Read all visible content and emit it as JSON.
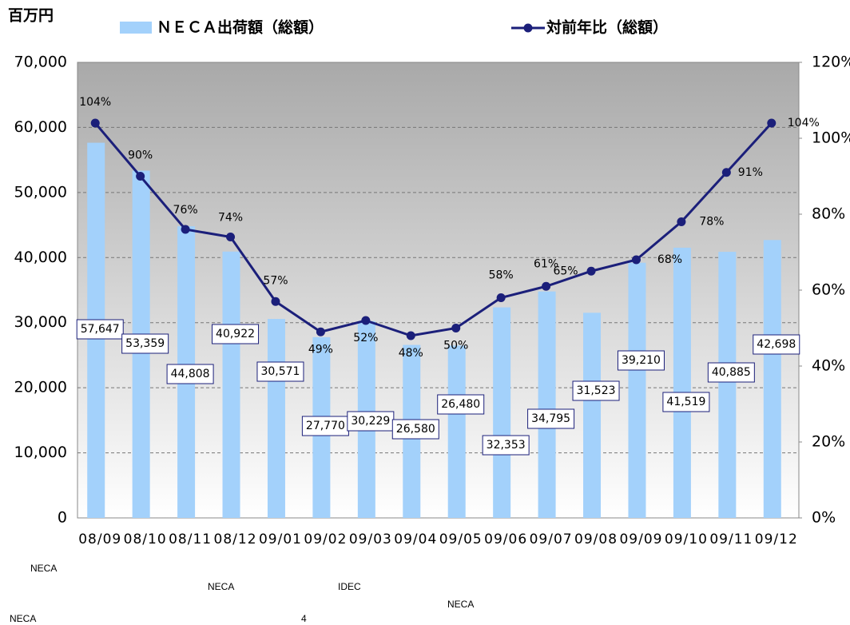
{
  "chart_data": {
    "type": "bar_line",
    "unit_label": "百万円",
    "categories": [
      "08/09",
      "08/10",
      "08/11",
      "08/12",
      "09/01",
      "09/02",
      "09/03",
      "09/04",
      "09/05",
      "09/06",
      "09/07",
      "09/08",
      "09/09",
      "09/10",
      "09/11",
      "09/12"
    ],
    "series": [
      {
        "name": "ＮＥＣＡ出荷額（総額）",
        "type": "bar",
        "color": "#a3d1fb",
        "values": [
          57647,
          53359,
          44808,
          40922,
          30571,
          27770,
          30229,
          26580,
          26480,
          32353,
          34795,
          31523,
          39210,
          41519,
          40885,
          42698
        ],
        "value_labels": [
          "57,647",
          "53,359",
          "44,808",
          "40,922",
          "30,571",
          "27,770",
          "30,229",
          "26,580",
          "26,480",
          "32,353",
          "34,795",
          "31,523",
          "39,210",
          "41,519",
          "40,885",
          "42,698"
        ]
      },
      {
        "name": "対前年比（総額）",
        "type": "line",
        "axis": "y2",
        "color": "#1b1f7a",
        "values": [
          104,
          90,
          76,
          74,
          57,
          49,
          52,
          48,
          50,
          58,
          61,
          65,
          68,
          78,
          91,
          104
        ],
        "value_labels": [
          "104%",
          "90%",
          "76%",
          "74%",
          "57%",
          "49%",
          "52%",
          "48%",
          "50%",
          "58%",
          "61%",
          "65%",
          "68%",
          "78%",
          "91%",
          "104%"
        ]
      }
    ],
    "ylim": [
      0,
      70000
    ],
    "yticks": [
      0,
      {
        "value": 10000,
        "label": "10,000"
      },
      {
        "value": 20000,
        "label": "20,000"
      },
      {
        "value": 30000,
        "label": "30,000"
      },
      {
        "value": 40000,
        "label": "40,000"
      },
      {
        "value": 50000,
        "label": "50,000"
      },
      {
        "value": 60000,
        "label": "60,000"
      },
      {
        "value": 70000,
        "label": "70,000"
      }
    ],
    "y2lim": [
      0,
      120
    ],
    "y2ticks": [
      {
        "value": 0,
        "label": "0%"
      },
      {
        "value": 20,
        "label": "20%"
      },
      {
        "value": 40,
        "label": "40%"
      },
      {
        "value": 60,
        "label": "60%"
      },
      {
        "value": 80,
        "label": "80%"
      },
      {
        "value": 100,
        "label": "100%"
      },
      {
        "value": 120,
        "label": "120%"
      }
    ],
    "grid": true
  },
  "notes": [
    "NECA",
    "NECA",
    "IDEC",
    "NECA",
    "NECA",
    "4"
  ]
}
